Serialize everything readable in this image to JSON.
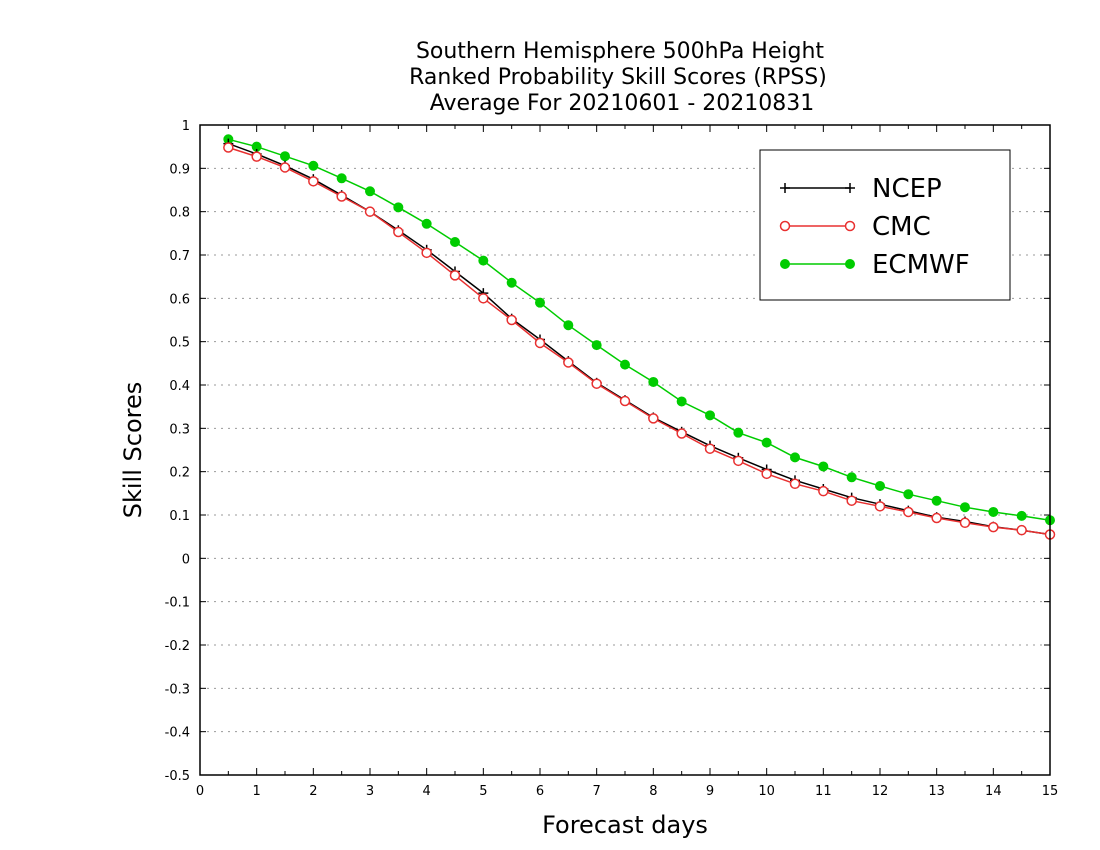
{
  "chart_data": {
    "type": "line",
    "title": [
      "Southern Hemisphere 500hPa Height",
      "Ranked Probability Skill Scores (RPSS)",
      "Average For 20210601 - 20210831"
    ],
    "xlabel": "Forecast days",
    "ylabel": "Skill Scores",
    "xlim": [
      0,
      15
    ],
    "ylim": [
      -0.5,
      1
    ],
    "x_ticks": [
      "0",
      "1",
      "2",
      "3",
      "4",
      "5",
      "6",
      "7",
      "8",
      "9",
      "10",
      "11",
      "12",
      "13",
      "14",
      "15"
    ],
    "y_ticks": [
      "-0.5",
      "-0.4",
      "-0.3",
      "-0.2",
      "-0.1",
      "0",
      "0.1",
      "0.2",
      "0.3",
      "0.4",
      "0.5",
      "0.6",
      "0.7",
      "0.8",
      "0.9",
      "1"
    ],
    "grid": "horizontal dotted",
    "legend_position": "top-right",
    "x": [
      0.5,
      1,
      1.5,
      2,
      2.5,
      3,
      3.5,
      4,
      4.5,
      5,
      5.5,
      6,
      6.5,
      7,
      7.5,
      8,
      8.5,
      9,
      9.5,
      10,
      10.5,
      11,
      11.5,
      12,
      12.5,
      13,
      13.5,
      14,
      14.5,
      15
    ],
    "series": [
      {
        "name": "NCEP",
        "color": "#000000",
        "marker": "plus",
        "values": [
          0.957,
          0.933,
          0.906,
          0.875,
          0.838,
          0.8,
          0.757,
          0.712,
          0.662,
          0.612,
          0.553,
          0.505,
          0.455,
          0.405,
          0.365,
          0.325,
          0.292,
          0.26,
          0.232,
          0.205,
          0.18,
          0.16,
          0.14,
          0.125,
          0.11,
          0.095,
          0.085,
          0.073,
          0.065,
          0.055
        ]
      },
      {
        "name": "CMC",
        "color": "#e83030",
        "marker": "open-circle",
        "values": [
          0.948,
          0.927,
          0.902,
          0.87,
          0.835,
          0.8,
          0.753,
          0.705,
          0.653,
          0.6,
          0.55,
          0.497,
          0.452,
          0.403,
          0.363,
          0.323,
          0.288,
          0.253,
          0.225,
          0.195,
          0.172,
          0.155,
          0.133,
          0.12,
          0.107,
          0.093,
          0.082,
          0.072,
          0.065,
          0.055
        ]
      },
      {
        "name": "ECMWF",
        "color": "#00cc00",
        "marker": "filled-circle",
        "values": [
          0.967,
          0.95,
          0.928,
          0.906,
          0.877,
          0.847,
          0.81,
          0.772,
          0.73,
          0.687,
          0.636,
          0.59,
          0.538,
          0.492,
          0.447,
          0.407,
          0.362,
          0.33,
          0.29,
          0.267,
          0.233,
          0.212,
          0.187,
          0.167,
          0.148,
          0.133,
          0.118,
          0.107,
          0.098,
          0.088
        ]
      }
    ]
  }
}
